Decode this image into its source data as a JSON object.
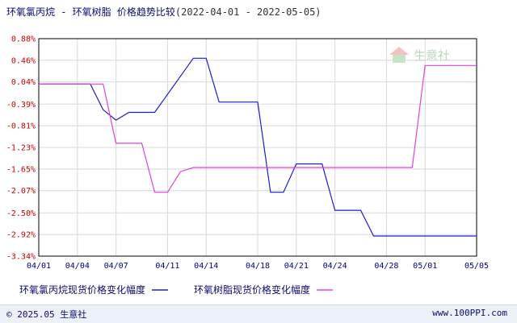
{
  "title": {
    "main": "环氧氯丙烷 - 环氧树脂 价格趋势比较",
    "range": "(2022-04-01 - 2022-05-05)"
  },
  "watermark": {
    "text": "生意社",
    "icon": "house-logo-icon"
  },
  "footer": {
    "copyright": "© 2025.05 生意社",
    "url": "www.100PPI.com"
  },
  "colors": {
    "series1": "#1c1cc8",
    "series2": "#e040e0",
    "ytick": "#cc0000",
    "xtick": "#000080",
    "grid": "#d8d8d8",
    "axis": "#000000"
  },
  "chart_data": {
    "type": "line",
    "x_ticks": [
      "04/01",
      "04/04",
      "04/07",
      "04/11",
      "04/14",
      "04/18",
      "04/21",
      "04/24",
      "04/28",
      "05/01",
      "05/05"
    ],
    "y_ticks": [
      "0.88%",
      "0.46%",
      "0.04%",
      "-0.39%",
      "-0.81%",
      "-1.23%",
      "-1.65%",
      "-2.07%",
      "-2.50%",
      "-2.92%",
      "-3.34%"
    ],
    "ylim": [
      -3.34,
      0.88
    ],
    "xlim": [
      "04/01",
      "05/05"
    ],
    "grid": true,
    "legend_position": "bottom",
    "series": [
      {
        "name": "环氧氯丙烷现货价格变化幅度",
        "color": "#1c1cc8",
        "points": [
          [
            "04/01",
            0.0
          ],
          [
            "04/05",
            0.0
          ],
          [
            "04/06",
            -0.5
          ],
          [
            "04/07",
            -0.7
          ],
          [
            "04/08",
            -0.55
          ],
          [
            "04/10",
            -0.55
          ],
          [
            "04/13",
            0.5
          ],
          [
            "04/14",
            0.5
          ],
          [
            "04/15",
            -0.35
          ],
          [
            "04/18",
            -0.35
          ],
          [
            "04/19",
            -2.1
          ],
          [
            "04/20",
            -2.1
          ],
          [
            "04/21",
            -1.55
          ],
          [
            "04/23",
            -1.55
          ],
          [
            "04/24",
            -2.45
          ],
          [
            "04/26",
            -2.45
          ],
          [
            "04/27",
            -2.95
          ],
          [
            "05/05",
            -2.95
          ]
        ]
      },
      {
        "name": "环氧树脂现货价格变化幅度",
        "color": "#e040e0",
        "points": [
          [
            "04/01",
            0.0
          ],
          [
            "04/06",
            0.0
          ],
          [
            "04/07",
            -1.15
          ],
          [
            "04/09",
            -1.15
          ],
          [
            "04/10",
            -2.1
          ],
          [
            "04/11",
            -2.1
          ],
          [
            "04/12",
            -1.7
          ],
          [
            "04/13",
            -1.62
          ],
          [
            "04/30",
            -1.62
          ],
          [
            "05/01",
            0.36
          ],
          [
            "05/05",
            0.36
          ]
        ]
      }
    ]
  }
}
